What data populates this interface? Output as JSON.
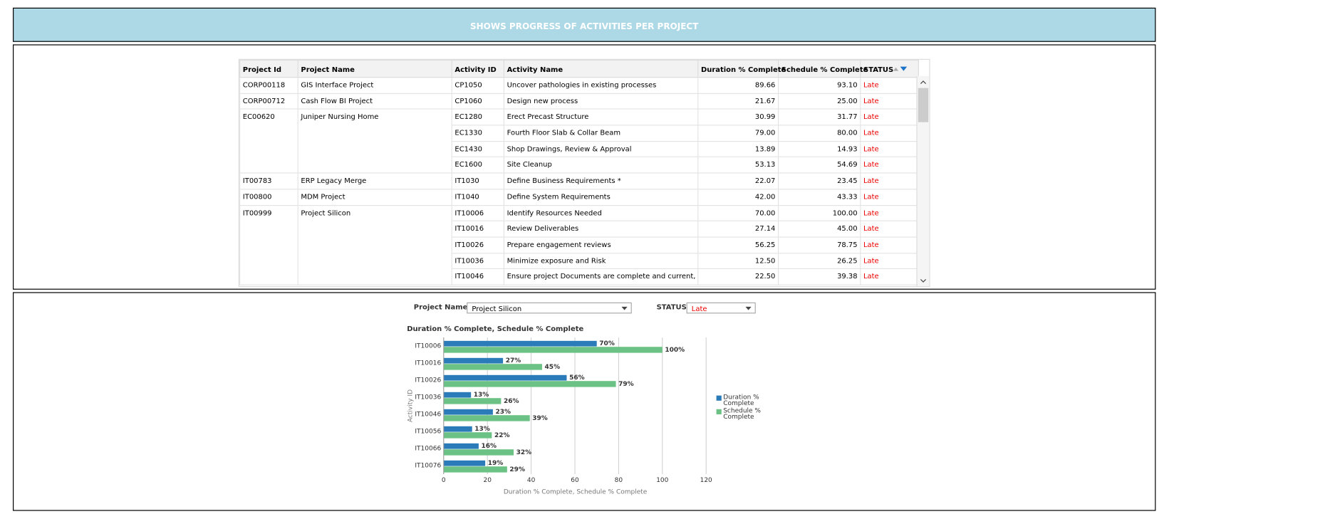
{
  "header": {
    "title": "SHOWS PROGRESS OF ACTIVITIES PER PROJECT"
  },
  "table": {
    "columns": [
      "Project Id",
      "Project Name",
      "Activity ID",
      "Activity Name",
      "Duration % Complete",
      "Schedule % Complete",
      "STATUS"
    ],
    "groups": [
      {
        "project_id": "CORP00118",
        "project_name": "GIS Interface Project",
        "activities": [
          [
            "CP1050",
            "Uncover pathologies in existing processes",
            "89.66",
            "93.10",
            "Late"
          ]
        ]
      },
      {
        "project_id": "CORP00712",
        "project_name": "Cash Flow BI Project",
        "activities": [
          [
            "CP1060",
            "Design new process",
            "21.67",
            "25.00",
            "Late"
          ]
        ]
      },
      {
        "project_id": "EC00620",
        "project_name": "Juniper Nursing Home",
        "activities": [
          [
            "EC1280",
            "Erect Precast Structure",
            "30.99",
            "31.77",
            "Late"
          ],
          [
            "EC1330",
            "Fourth Floor Slab & Collar Beam",
            "79.00",
            "80.00",
            "Late"
          ],
          [
            "EC1430",
            "Shop Drawings, Review & Approval",
            "13.89",
            "14.93",
            "Late"
          ],
          [
            "EC1600",
            "Site Cleanup",
            "53.13",
            "54.69",
            "Late"
          ]
        ]
      },
      {
        "project_id": "IT00783",
        "project_name": "ERP Legacy Merge",
        "activities": [
          [
            "IT1030",
            "Define Business Requirements *",
            "22.07",
            "23.45",
            "Late"
          ]
        ]
      },
      {
        "project_id": "IT00800",
        "project_name": "MDM Project",
        "activities": [
          [
            "IT1040",
            "Define System Requirements",
            "42.00",
            "43.33",
            "Late"
          ]
        ]
      },
      {
        "project_id": "IT00999",
        "project_name": "Project Silicon",
        "activities": [
          [
            "IT10006",
            "Identify Resources Needed",
            "70.00",
            "100.00",
            "Late"
          ],
          [
            "IT10016",
            "Review Deliverables",
            "27.14",
            "45.00",
            "Late"
          ],
          [
            "IT10026",
            "Prepare engagement reviews",
            "56.25",
            "78.75",
            "Late"
          ],
          [
            "IT10036",
            "Minimize exposure and Risk",
            "12.50",
            "26.25",
            "Late"
          ],
          [
            "IT10046",
            "Ensure project Documents are complete and current,",
            "22.50",
            "39.38",
            "Late"
          ]
        ]
      }
    ]
  },
  "filters": [
    {
      "label": "Project Name",
      "value": "Project Silicon"
    },
    {
      "label": "STATUS",
      "value": "Late"
    }
  ],
  "chart_data": {
    "type": "bar",
    "horizontal": true,
    "title": "Duration % Complete, Schedule % Complete",
    "x_label": "Duration % Complete, Schedule % Complete",
    "y_label": "Activity ID",
    "categories": [
      "IT10006",
      "IT10016",
      "IT10026",
      "IT10036",
      "IT10046",
      "IT10056",
      "IT10066",
      "IT10076"
    ],
    "series": [
      {
        "name": "Duration % Complete",
        "color": "#2b7bb9",
        "values": [
          70,
          27.14,
          56.25,
          12.5,
          22.5,
          13,
          16,
          19
        ],
        "value_labels": [
          "70%",
          "27%",
          "56%",
          "13%",
          "23%",
          "13%",
          "16%",
          "19%"
        ]
      },
      {
        "name": "Schedule % Complete",
        "color": "#6cc285",
        "values": [
          100,
          45,
          78.75,
          26.25,
          39.38,
          22,
          32,
          29
        ],
        "value_labels": [
          "100%",
          "45%",
          "79%",
          "26%",
          "39%",
          "22%",
          "32%",
          "29%"
        ]
      }
    ],
    "xlim": [
      0,
      120
    ],
    "xticks": [
      0,
      20,
      40,
      60,
      80,
      100,
      120
    ],
    "grid": true,
    "legend": "right"
  }
}
